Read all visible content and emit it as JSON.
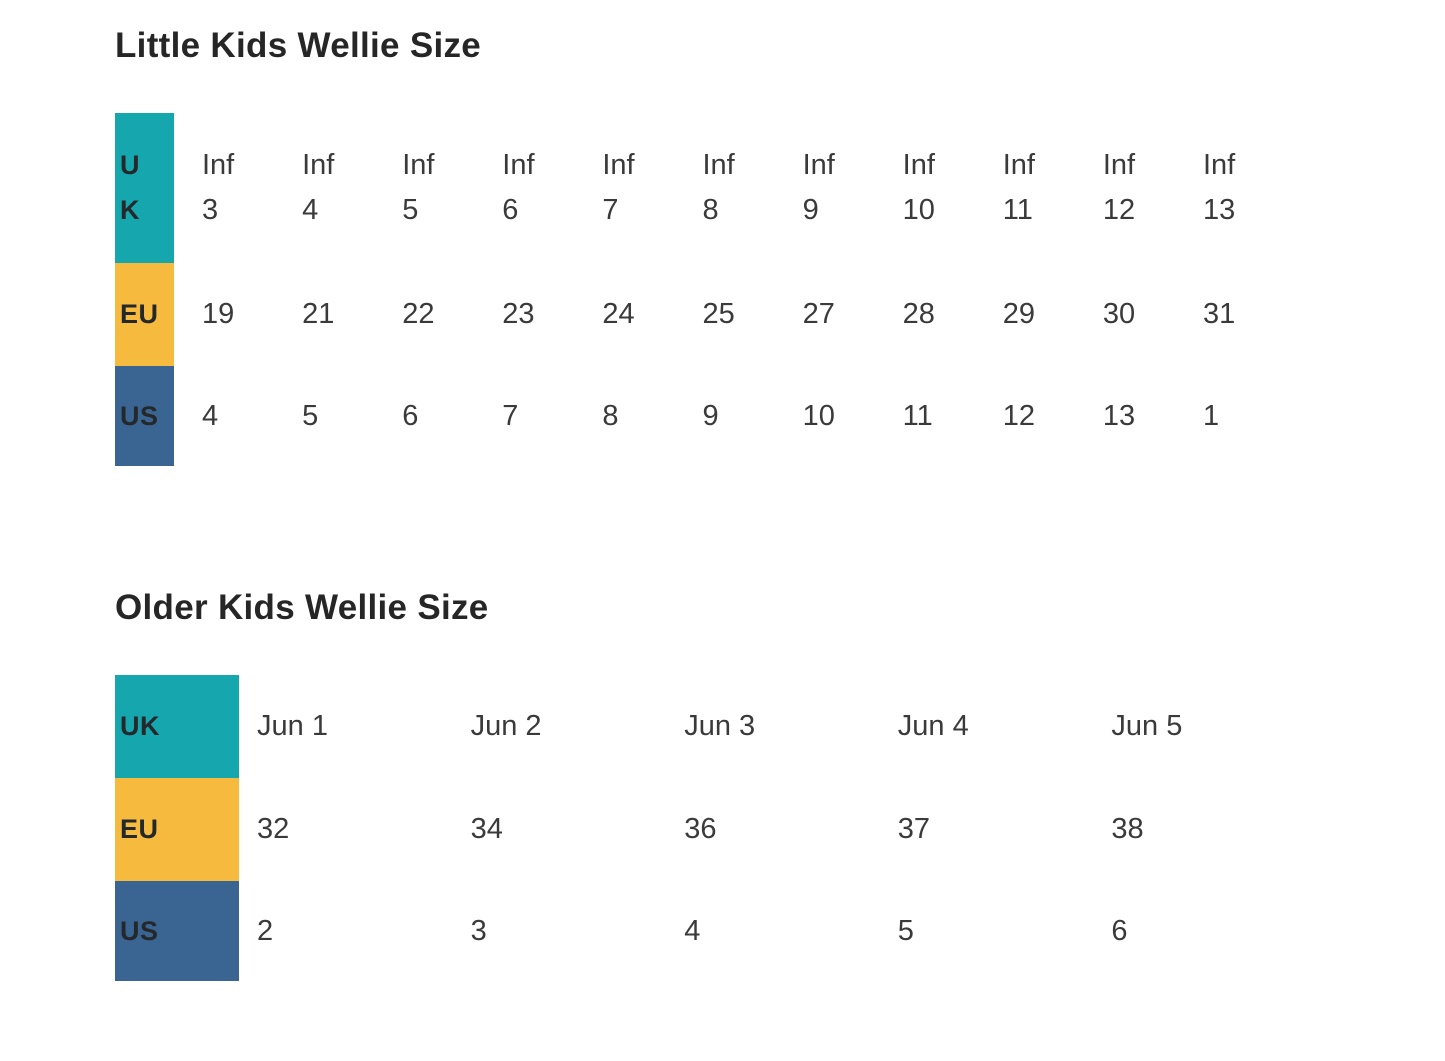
{
  "page": {
    "background": "#FFFFFF"
  },
  "colors": {
    "title_text": "#262626",
    "data_text": "#3A3A3A",
    "header_text": "#24282B",
    "uk_header": "#16A6AE",
    "eu_header": "#F6BB3E",
    "us_header": "#3A6492"
  },
  "tables": [
    {
      "id": "little-kids",
      "title": "Little Kids Wellie Size",
      "rows": [
        {
          "key": "uk",
          "header": "UK",
          "header_color": "#16A6AE",
          "wrap_header": true,
          "wrap_values": true,
          "values": [
            "Inf 3",
            "Inf 4",
            "Inf 5",
            "Inf 6",
            "Inf 7",
            "Inf 8",
            "Inf 9",
            "Inf 10",
            "Inf 11",
            "Inf 12",
            "Inf 13"
          ]
        },
        {
          "key": "eu",
          "header": "EU",
          "header_color": "#F6BB3E",
          "wrap_header": false,
          "wrap_values": false,
          "values": [
            "19",
            "21",
            "22",
            "23",
            "24",
            "25",
            "27",
            "28",
            "29",
            "30",
            "31"
          ]
        },
        {
          "key": "us",
          "header": "US",
          "header_color": "#3A6492",
          "wrap_header": false,
          "wrap_values": false,
          "values": [
            "4",
            "5",
            "6",
            "7",
            "8",
            "9",
            "10",
            "11",
            "12",
            "13",
            "1"
          ]
        }
      ]
    },
    {
      "id": "older-kids",
      "title": "Older Kids Wellie Size",
      "rows": [
        {
          "key": "uk",
          "header": "UK",
          "header_color": "#16A6AE",
          "wrap_header": false,
          "wrap_values": false,
          "values": [
            "Jun 1",
            "Jun 2",
            "Jun 3",
            "Jun 4",
            "Jun 5"
          ]
        },
        {
          "key": "eu",
          "header": "EU",
          "header_color": "#F6BB3E",
          "wrap_header": false,
          "wrap_values": false,
          "values": [
            "32",
            "34",
            "36",
            "37",
            "38"
          ]
        },
        {
          "key": "us",
          "header": "US",
          "header_color": "#3A6492",
          "wrap_header": false,
          "wrap_values": false,
          "values": [
            "2",
            "3",
            "4",
            "5",
            "6"
          ]
        }
      ]
    }
  ]
}
